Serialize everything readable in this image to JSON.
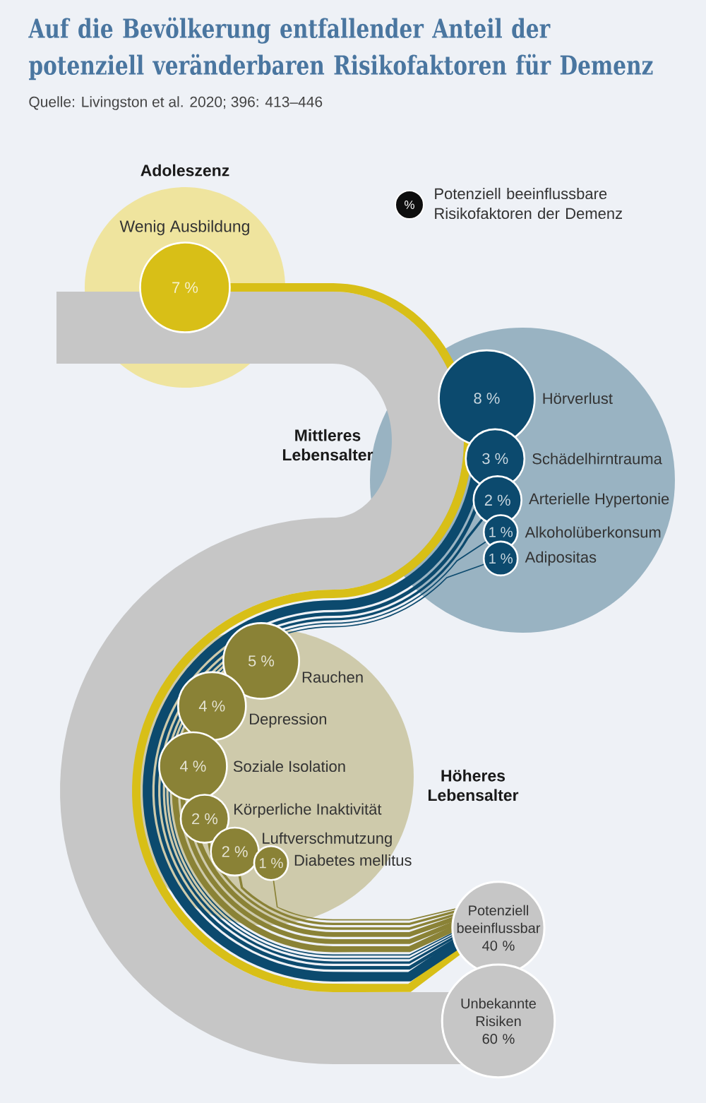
{
  "chart_data": {
    "type": "other",
    "title": "Auf die Bevölkerung entfallender Anteil der potenziell veränderbaren Risikofaktoren für Demenz",
    "annotations": [
      "Quelle: Livingston et al. 2020; 396: 413–446",
      "%",
      "Adoleszenz",
      "Mittleres Lebensalter",
      "Höheres Lebensalter"
    ],
    "legend_title": "Potenziell beeinflussbare Risikofaktoren der Demenz",
    "categories": [
      "Wenig Ausbildung",
      "Hörverlust",
      "Schädelhirntrauma",
      "Arterielle Hypertonie",
      "Alkoholüberkonsum",
      "Adipositas",
      "Rauchen",
      "Depression",
      "Soziale Isolation",
      "Körperliche Inaktivität",
      "Luftverschmutzung",
      "Diabetes mellitus",
      "Potenziell beeinflussbar",
      "Unbekannte Risiken"
    ],
    "series": [
      {
        "color": "#d8bf17",
        "values": [
          7,
          null,
          null,
          null,
          null,
          null,
          null,
          null,
          null,
          null,
          null,
          null,
          null,
          null
        ],
        "value_labels": [
          "7 %",
          null,
          null,
          null,
          null,
          null,
          null,
          null,
          null,
          null,
          null,
          null,
          null,
          null
        ]
      },
      {
        "color": "#0c4a6e",
        "values": [
          null,
          8,
          3,
          2,
          1,
          1,
          null,
          null,
          null,
          null,
          null,
          null,
          null,
          null
        ],
        "value_labels": [
          null,
          "8 %",
          "3 %",
          "2 %",
          "1 %",
          "1 %",
          null,
          null,
          null,
          null,
          null,
          null,
          null,
          null
        ]
      },
      {
        "color": "#8a8236",
        "values": [
          null,
          null,
          null,
          null,
          null,
          null,
          5,
          4,
          4,
          2,
          2,
          1,
          null,
          null
        ],
        "value_labels": [
          null,
          null,
          null,
          null,
          null,
          null,
          "5 %",
          "4 %",
          "4 %",
          "2 %",
          "2 %",
          "1 %",
          null,
          null
        ]
      },
      {
        "color": "#c6c6c6",
        "values": [
          null,
          null,
          null,
          null,
          null,
          null,
          null,
          null,
          null,
          null,
          null,
          null,
          40,
          60
        ],
        "value_labels": [
          null,
          null,
          null,
          null,
          null,
          null,
          null,
          null,
          null,
          null,
          null,
          null,
          "40 %",
          "60 %"
        ]
      }
    ]
  }
}
